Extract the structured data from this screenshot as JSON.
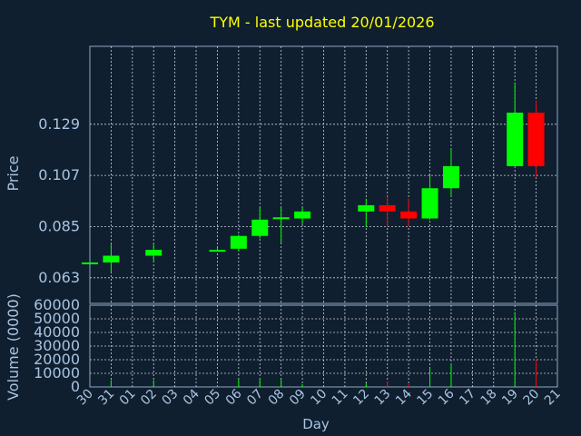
{
  "chart_data": {
    "type": "candlestick",
    "title": "TYM - last updated 20/01/2026",
    "xlabel": "Day",
    "ylabel_price": "Price",
    "ylabel_volume": "Volume (0000)",
    "x_ticks": [
      "30",
      "31",
      "01",
      "02",
      "03",
      "04",
      "05",
      "06",
      "07",
      "08",
      "09",
      "10",
      "11",
      "12",
      "13",
      "14",
      "15",
      "16",
      "17",
      "18",
      "19",
      "20",
      "21"
    ],
    "price_ticks": [
      "0.063",
      "0.085",
      "0.107",
      "0.129"
    ],
    "price_tick_values": [
      0.063,
      0.085,
      0.107,
      0.129
    ],
    "price_range": [
      0.052,
      0.1625
    ],
    "volume_ticks": [
      "0",
      "10000",
      "20000",
      "30000",
      "40000",
      "50000",
      "60000"
    ],
    "volume_range": [
      0,
      60000
    ],
    "grid": true,
    "colors": {
      "background": "#0f1f30",
      "text": "#a9c4e0",
      "title": "#ffff00",
      "up": "#00ff00",
      "down": "#ff0000",
      "grid": "#c8d2dc",
      "axis": "#8fa8c2"
    },
    "candles": [
      {
        "day": 0,
        "open": 0.0696,
        "close": 0.0696,
        "high": 0.0696,
        "low": 0.0696,
        "volume": 0
      },
      {
        "day": 1,
        "open": 0.0696,
        "close": 0.0725,
        "high": 0.0775,
        "low": 0.0655,
        "volume": 5000
      },
      {
        "day": 3,
        "open": 0.0725,
        "close": 0.075,
        "high": 0.0775,
        "low": 0.07,
        "volume": 5000
      },
      {
        "day": 6,
        "open": 0.0744,
        "close": 0.075,
        "high": 0.076,
        "low": 0.0744,
        "volume": 1000
      },
      {
        "day": 7,
        "open": 0.0755,
        "close": 0.081,
        "high": 0.0815,
        "low": 0.0745,
        "volume": 6000
      },
      {
        "day": 8,
        "open": 0.081,
        "close": 0.088,
        "high": 0.093,
        "low": 0.08,
        "volume": 6000
      },
      {
        "day": 9,
        "open": 0.0885,
        "close": 0.089,
        "high": 0.093,
        "low": 0.078,
        "volume": 6000
      },
      {
        "day": 10,
        "open": 0.0885,
        "close": 0.0915,
        "high": 0.093,
        "low": 0.086,
        "volume": 2000
      },
      {
        "day": 13,
        "open": 0.0915,
        "close": 0.0942,
        "high": 0.097,
        "low": 0.085,
        "volume": 3000
      },
      {
        "day": 14,
        "open": 0.0942,
        "close": 0.0915,
        "high": 0.098,
        "low": 0.085,
        "volume": 4000
      },
      {
        "day": 15,
        "open": 0.0915,
        "close": 0.0885,
        "high": 0.097,
        "low": 0.085,
        "volume": 2000
      },
      {
        "day": 16,
        "open": 0.0885,
        "close": 0.1015,
        "high": 0.107,
        "low": 0.088,
        "volume": 14000
      },
      {
        "day": 17,
        "open": 0.1015,
        "close": 0.111,
        "high": 0.118,
        "low": 0.098,
        "volume": 17000
      },
      {
        "day": 20,
        "open": 0.111,
        "close": 0.134,
        "high": 0.147,
        "low": 0.111,
        "volume": 55000
      },
      {
        "day": 21,
        "open": 0.134,
        "close": 0.111,
        "high": 0.139,
        "low": 0.106,
        "volume": 20000
      }
    ]
  }
}
